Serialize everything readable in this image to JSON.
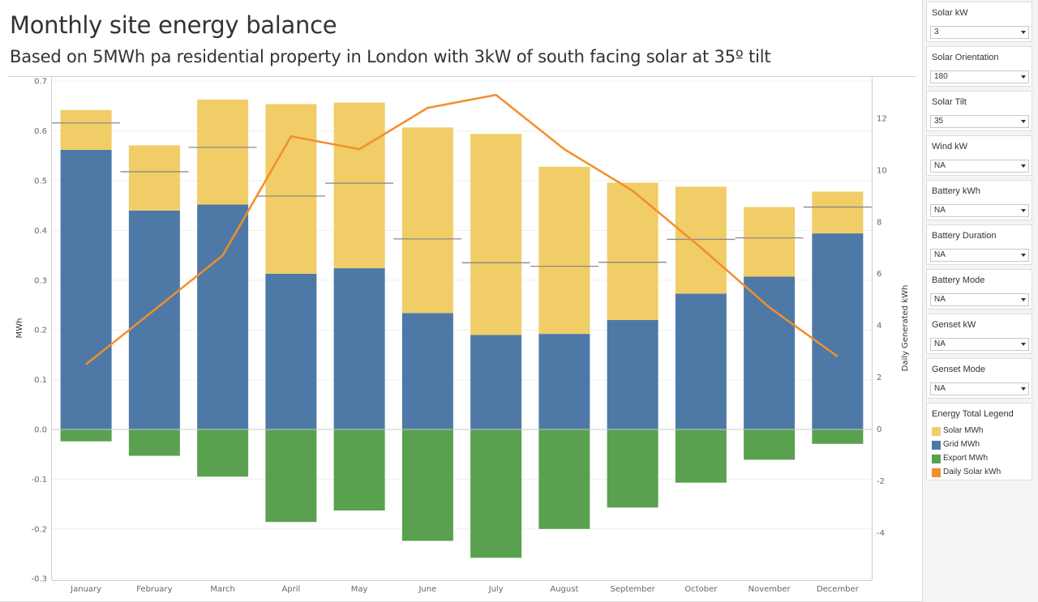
{
  "header": {
    "title": "Monthly site energy balance",
    "subtitle": "Based on 5MWh pa  residential property in London with 3kW of south facing solar at 35º tilt"
  },
  "filters": [
    {
      "label": "Solar kW",
      "value": "3"
    },
    {
      "label": "Solar Orientation",
      "value": "180"
    },
    {
      "label": "Solar Tilt",
      "value": "35"
    },
    {
      "label": "Wind kW",
      "value": "NA"
    },
    {
      "label": "Battery kWh",
      "value": "NA"
    },
    {
      "label": "Battery Duration",
      "value": "NA"
    },
    {
      "label": "Battery Mode",
      "value": "NA"
    },
    {
      "label": "Genset kW",
      "value": "NA"
    },
    {
      "label": "Genset Mode",
      "value": "NA"
    }
  ],
  "legend": {
    "title": "Energy Total Legend",
    "items": [
      {
        "label": "Solar MWh",
        "color": "#f0cd66"
      },
      {
        "label": "Grid MWh",
        "color": "#4e79a7"
      },
      {
        "label": "Export MWh",
        "color": "#59a14f"
      },
      {
        "label": "Daily Solar kWh",
        "color": "#f28e2b"
      }
    ]
  },
  "chart_data": {
    "type": "bar",
    "categories": [
      "January",
      "February",
      "March",
      "April",
      "May",
      "June",
      "July",
      "August",
      "September",
      "October",
      "November",
      "December"
    ],
    "series": [
      {
        "name": "Grid MWh",
        "axis": "left",
        "color": "#4e79a7",
        "values": [
          0.562,
          0.44,
          0.452,
          0.313,
          0.324,
          0.234,
          0.19,
          0.192,
          0.22,
          0.273,
          0.307,
          0.394
        ]
      },
      {
        "name": "Solar MWh",
        "axis": "left",
        "color": "#f0cd66",
        "values": [
          0.08,
          0.131,
          0.211,
          0.341,
          0.333,
          0.373,
          0.404,
          0.336,
          0.276,
          0.215,
          0.14,
          0.084
        ]
      },
      {
        "name": "Export MWh",
        "axis": "left",
        "color": "#59a14f",
        "values": [
          -0.024,
          -0.053,
          -0.095,
          -0.186,
          -0.163,
          -0.224,
          -0.258,
          -0.2,
          -0.157,
          -0.107,
          -0.061,
          -0.029
        ]
      },
      {
        "name": "Daily Solar kWh",
        "axis": "right",
        "type": "line",
        "color": "#f28e2b",
        "values": [
          2.5,
          4.6,
          6.7,
          11.3,
          10.8,
          12.4,
          12.9,
          10.8,
          9.2,
          7.0,
          4.7,
          2.8
        ]
      }
    ],
    "reference_values": [
      0.616,
      0.518,
      0.567,
      0.469,
      0.495,
      0.383,
      0.335,
      0.328,
      0.336,
      0.382,
      0.385,
      0.447
    ],
    "ylabel": "MWh",
    "ylabel_right": "Daily Generated kWh",
    "ylim": [
      -0.3,
      0.7
    ],
    "yticks": [
      "0.7",
      "0.6",
      "0.5",
      "0.4",
      "0.3",
      "0.2",
      "0.1",
      "0.0",
      "-0.1",
      "-0.2",
      "-0.3"
    ],
    "ylim_right": [
      -5.83,
      13.59
    ],
    "yticks_right": [
      "12",
      "10",
      "8",
      "6",
      "4",
      "2",
      "0",
      "-2",
      "-4"
    ],
    "grid": true
  }
}
